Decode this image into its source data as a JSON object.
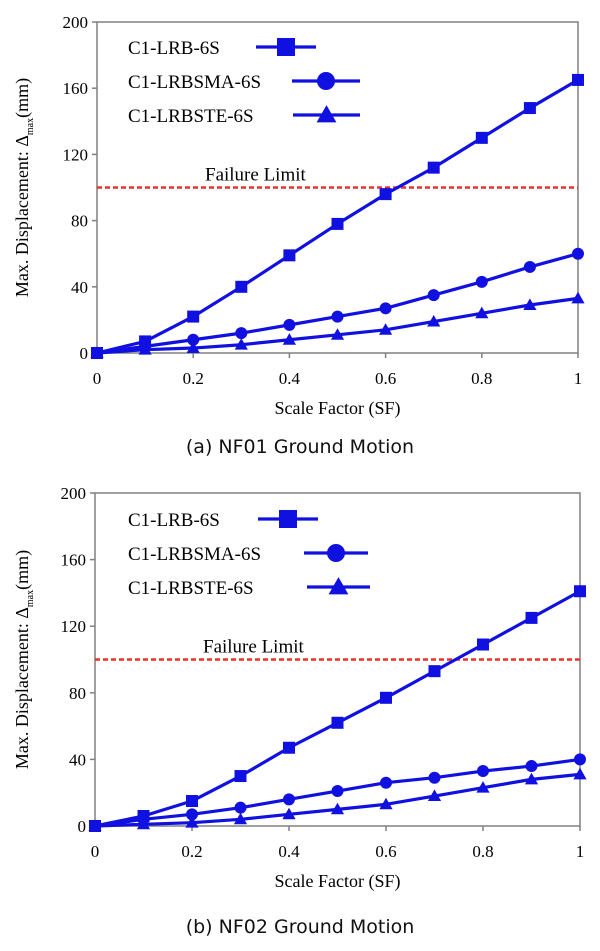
{
  "chart_data": [
    {
      "type": "line",
      "caption": "(a) NF01 Ground Motion",
      "xlabel": "Scale Factor (SF)",
      "ylabel": "Max. Displacement: Δ",
      "ylabel_sub": "max",
      "ylabel_unit": "(mm)",
      "xlim": [
        0,
        1
      ],
      "ylim": [
        0,
        200
      ],
      "xticks": [
        "0",
        "0.2",
        "0.4",
        "0.6",
        "0.8",
        "1"
      ],
      "xtick_values": [
        0,
        0.2,
        0.4,
        0.6,
        0.8,
        1
      ],
      "yticks": [
        "0",
        "40",
        "80",
        "120",
        "160",
        "200"
      ],
      "ytick_values": [
        0,
        40,
        80,
        120,
        160,
        200
      ],
      "grid": false,
      "legend_position": "top-left",
      "x": [
        0,
        0.1,
        0.2,
        0.3,
        0.4,
        0.5,
        0.6,
        0.7,
        0.8,
        0.9,
        1
      ],
      "series": [
        {
          "name": "C1-LRB-6S",
          "marker": "square",
          "color": "#1010e0",
          "values": [
            0,
            7,
            22,
            40,
            59,
            78,
            96,
            112,
            130,
            148,
            165
          ]
        },
        {
          "name": "C1-LRBSMA-6S",
          "marker": "circle",
          "color": "#1010e0",
          "values": [
            0,
            4,
            8,
            12,
            17,
            22,
            27,
            35,
            43,
            52,
            60
          ]
        },
        {
          "name": "C1-LRBSTE-6S",
          "marker": "triangle",
          "color": "#1010e0",
          "values": [
            0,
            2,
            3,
            5,
            8,
            11,
            14,
            19,
            24,
            29,
            33
          ]
        }
      ],
      "threshold": {
        "label": "Failure Limit",
        "value": 100,
        "color": "#e8322a"
      }
    },
    {
      "type": "line",
      "caption": "(b) NF02 Ground Motion",
      "xlabel": "Scale Factor (SF)",
      "ylabel": "Max. Displacement: Δ",
      "ylabel_sub": "max",
      "ylabel_unit": "(mm)",
      "xlim": [
        0,
        1
      ],
      "ylim": [
        0,
        200
      ],
      "xticks": [
        "0",
        "0.2",
        "0.4",
        "0.6",
        "0.8",
        "1"
      ],
      "xtick_values": [
        0,
        0.2,
        0.4,
        0.6,
        0.8,
        1
      ],
      "yticks": [
        "0",
        "40",
        "80",
        "120",
        "160",
        "200"
      ],
      "ytick_values": [
        0,
        40,
        80,
        120,
        160,
        200
      ],
      "grid": false,
      "legend_position": "top-left",
      "x": [
        0,
        0.1,
        0.2,
        0.3,
        0.4,
        0.5,
        0.6,
        0.7,
        0.8,
        0.9,
        1
      ],
      "series": [
        {
          "name": "C1-LRB-6S",
          "marker": "square",
          "color": "#1010e0",
          "values": [
            0,
            6,
            15,
            30,
            47,
            62,
            77,
            93,
            109,
            125,
            141
          ]
        },
        {
          "name": "C1-LRBSMA-6S",
          "marker": "circle",
          "color": "#1010e0",
          "values": [
            0,
            4,
            7,
            11,
            16,
            21,
            26,
            29,
            33,
            36,
            40
          ]
        },
        {
          "name": "C1-LRBSTE-6S",
          "marker": "triangle",
          "color": "#1010e0",
          "values": [
            0,
            1,
            2,
            4,
            7,
            10,
            13,
            18,
            23,
            28,
            31
          ]
        }
      ],
      "threshold": {
        "label": "Failure Limit",
        "value": 100,
        "color": "#e8322a"
      }
    }
  ]
}
